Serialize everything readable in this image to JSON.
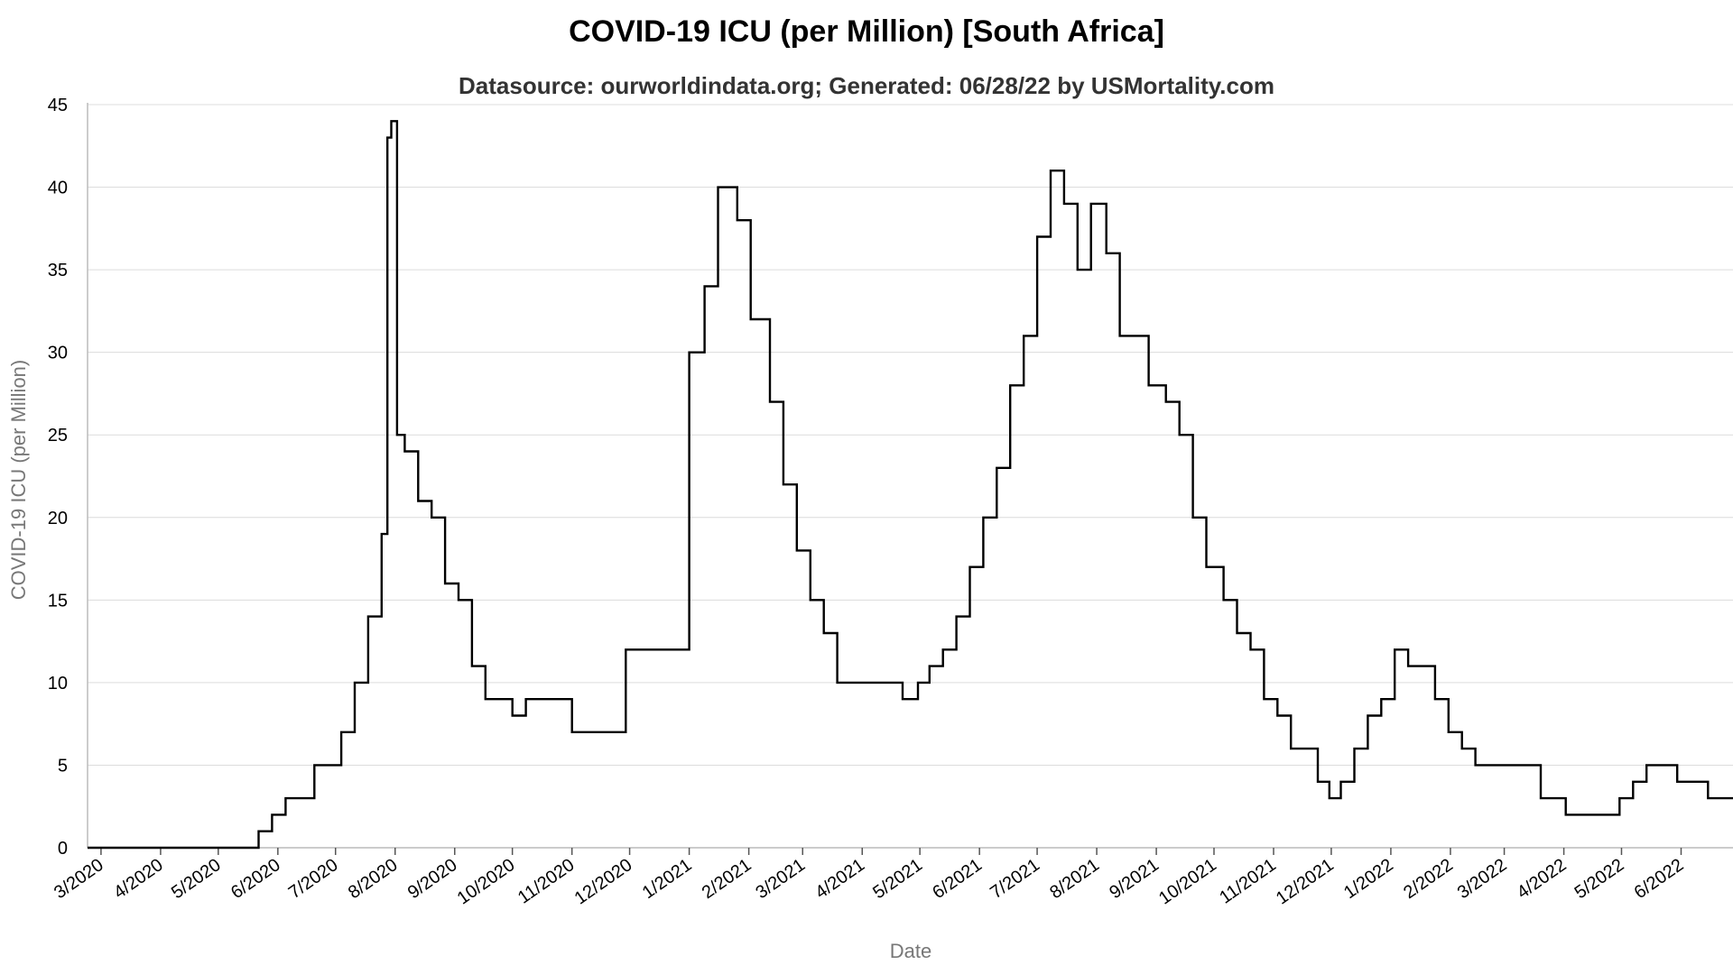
{
  "chart_data": {
    "type": "line",
    "title": "COVID-19 ICU (per Million) [South Africa]",
    "subtitle": "Datasource: ourworldindata.org; Generated: 06/28/22 by USMortality.com",
    "xlabel": "Date",
    "ylabel": "COVID-19 ICU (per Million)",
    "ylim": [
      0,
      45
    ],
    "yticks": [
      0,
      5,
      10,
      15,
      20,
      25,
      30,
      35,
      40,
      45
    ],
    "xlim": [
      "2020-02-23",
      "2022-06-28"
    ],
    "xticks": [
      {
        "date": "2020-03-01",
        "label": "3/2020"
      },
      {
        "date": "2020-04-01",
        "label": "4/2020"
      },
      {
        "date": "2020-05-01",
        "label": "5/2020"
      },
      {
        "date": "2020-06-01",
        "label": "6/2020"
      },
      {
        "date": "2020-07-01",
        "label": "7/2020"
      },
      {
        "date": "2020-08-01",
        "label": "8/2020"
      },
      {
        "date": "2020-09-01",
        "label": "9/2020"
      },
      {
        "date": "2020-10-01",
        "label": "10/2020"
      },
      {
        "date": "2020-11-01",
        "label": "11/2020"
      },
      {
        "date": "2020-12-01",
        "label": "12/2020"
      },
      {
        "date": "2021-01-01",
        "label": "1/2021"
      },
      {
        "date": "2021-02-01",
        "label": "2/2021"
      },
      {
        "date": "2021-03-01",
        "label": "3/2021"
      },
      {
        "date": "2021-04-01",
        "label": "4/2021"
      },
      {
        "date": "2021-05-01",
        "label": "5/2021"
      },
      {
        "date": "2021-06-01",
        "label": "6/2021"
      },
      {
        "date": "2021-07-01",
        "label": "7/2021"
      },
      {
        "date": "2021-08-01",
        "label": "8/2021"
      },
      {
        "date": "2021-09-01",
        "label": "9/2021"
      },
      {
        "date": "2021-10-01",
        "label": "10/2021"
      },
      {
        "date": "2021-11-01",
        "label": "11/2021"
      },
      {
        "date": "2021-12-01",
        "label": "12/2021"
      },
      {
        "date": "2022-01-01",
        "label": "1/2022"
      },
      {
        "date": "2022-02-01",
        "label": "2/2022"
      },
      {
        "date": "2022-03-01",
        "label": "3/2022"
      },
      {
        "date": "2022-04-01",
        "label": "4/2022"
      },
      {
        "date": "2022-05-01",
        "label": "5/2022"
      },
      {
        "date": "2022-06-01",
        "label": "6/2022"
      }
    ],
    "grid": true,
    "line_color": "#000000",
    "series": [
      {
        "step": true,
        "x": [
          "2020-02-23",
          "2020-05-22",
          "2020-05-29",
          "2020-06-05",
          "2020-06-20",
          "2020-07-04",
          "2020-07-11",
          "2020-07-18",
          "2020-07-25",
          "2020-07-28",
          "2020-07-30",
          "2020-08-02",
          "2020-08-03",
          "2020-08-06",
          "2020-08-13",
          "2020-08-20",
          "2020-08-27",
          "2020-09-03",
          "2020-09-10",
          "2020-09-17",
          "2020-10-01",
          "2020-10-08",
          "2020-11-01",
          "2020-11-08",
          "2020-11-29",
          "2020-12-01",
          "2021-01-01",
          "2021-01-09",
          "2021-01-12",
          "2021-01-16",
          "2021-01-26",
          "2021-02-02",
          "2021-02-06",
          "2021-02-12",
          "2021-02-19",
          "2021-02-26",
          "2021-03-05",
          "2021-03-12",
          "2021-03-19",
          "2021-04-22",
          "2021-04-30",
          "2021-05-06",
          "2021-05-13",
          "2021-05-20",
          "2021-05-27",
          "2021-06-03",
          "2021-06-10",
          "2021-06-17",
          "2021-06-24",
          "2021-07-01",
          "2021-07-08",
          "2021-07-15",
          "2021-07-22",
          "2021-07-29",
          "2021-08-06",
          "2021-08-13",
          "2021-08-17",
          "2021-08-28",
          "2021-09-06",
          "2021-09-13",
          "2021-09-20",
          "2021-09-27",
          "2021-10-06",
          "2021-10-13",
          "2021-10-20",
          "2021-10-27",
          "2021-11-03",
          "2021-11-10",
          "2021-11-24",
          "2021-11-30",
          "2021-12-06",
          "2021-12-13",
          "2021-12-20",
          "2021-12-27",
          "2022-01-03",
          "2022-01-10",
          "2022-01-24",
          "2022-01-31",
          "2022-02-07",
          "2022-02-14",
          "2022-02-21",
          "2022-03-20",
          "2022-04-02",
          "2022-04-30",
          "2022-05-07",
          "2022-05-14",
          "2022-05-30",
          "2022-06-15",
          "2022-06-28"
        ],
        "y": [
          0,
          1,
          2,
          3,
          5,
          7,
          10,
          14,
          19,
          43,
          44,
          25,
          25,
          24,
          21,
          20,
          16,
          15,
          11,
          9,
          8,
          9,
          7,
          7,
          12,
          12,
          30,
          34,
          34,
          40,
          38,
          32,
          32,
          27,
          22,
          18,
          15,
          13,
          10,
          9,
          10,
          11,
          12,
          14,
          17,
          20,
          23,
          28,
          31,
          37,
          41,
          39,
          35,
          39,
          36,
          31,
          31,
          28,
          27,
          25,
          20,
          17,
          15,
          13,
          12,
          9,
          8,
          6,
          4,
          3,
          4,
          6,
          8,
          9,
          12,
          11,
          9,
          7,
          6,
          5,
          5,
          3,
          2,
          3,
          4,
          5,
          4,
          3,
          3
        ]
      }
    ]
  }
}
